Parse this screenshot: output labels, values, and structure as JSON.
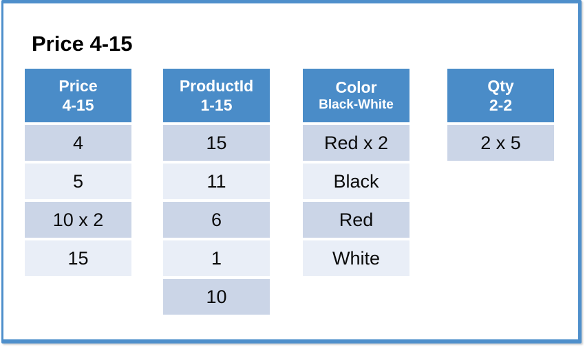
{
  "slide": {
    "title": "Price 4-15",
    "colors": {
      "header_bg": "#4A8CC8",
      "header_text": "#FFFFFF",
      "row_dark": "#CBD5E7",
      "row_light": "#E9EEF7",
      "cell_text": "#0A0A0A",
      "frame": "#4E8FCB"
    },
    "facets": [
      {
        "name": "Price",
        "range": "4-15",
        "values": [
          "4",
          "5",
          "10 x 2",
          "15"
        ]
      },
      {
        "name": "ProductId",
        "range": "1-15",
        "values": [
          "15",
          "11",
          "6",
          "1",
          "10"
        ]
      },
      {
        "name": "Color",
        "range": "Black-White",
        "values": [
          "Red x 2",
          "Black",
          "Red",
          "White"
        ]
      },
      {
        "name": "Qty",
        "range": "2-2",
        "values": [
          "2 x 5"
        ]
      }
    ]
  }
}
